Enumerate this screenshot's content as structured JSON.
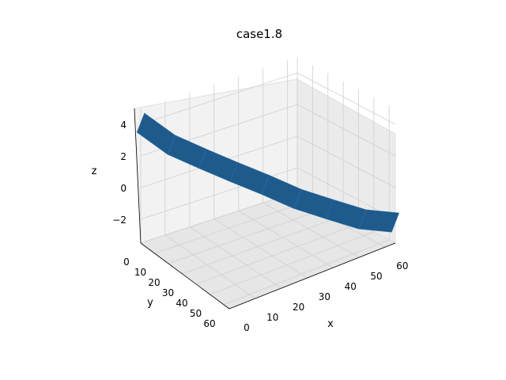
{
  "chart_data": {
    "type": "surface",
    "title": "case1.8",
    "xlabel": "x",
    "ylabel": "y",
    "zlabel": "z",
    "x_ticks": [
      0,
      10,
      20,
      30,
      40,
      50,
      60
    ],
    "y_ticks": [
      0,
      10,
      20,
      30,
      40,
      50,
      60
    ],
    "z_ticks": [
      "4",
      "2",
      "0",
      "−2"
    ],
    "xlim": [
      0,
      64
    ],
    "ylim": [
      0,
      64
    ],
    "zlim": [
      -3.5,
      5
    ],
    "grid": true,
    "surface_color": "#1f5a8c",
    "ridge_x": [
      0,
      8,
      16,
      24,
      32,
      40,
      48,
      56,
      64
    ],
    "ridge_y": [
      0,
      8,
      16,
      24,
      32,
      40,
      48,
      56,
      64
    ],
    "ridge_z": [
      3.9,
      2.6,
      1.8,
      1.0,
      0.2,
      -0.7,
      -1.4,
      -2.1,
      -2.4
    ]
  }
}
